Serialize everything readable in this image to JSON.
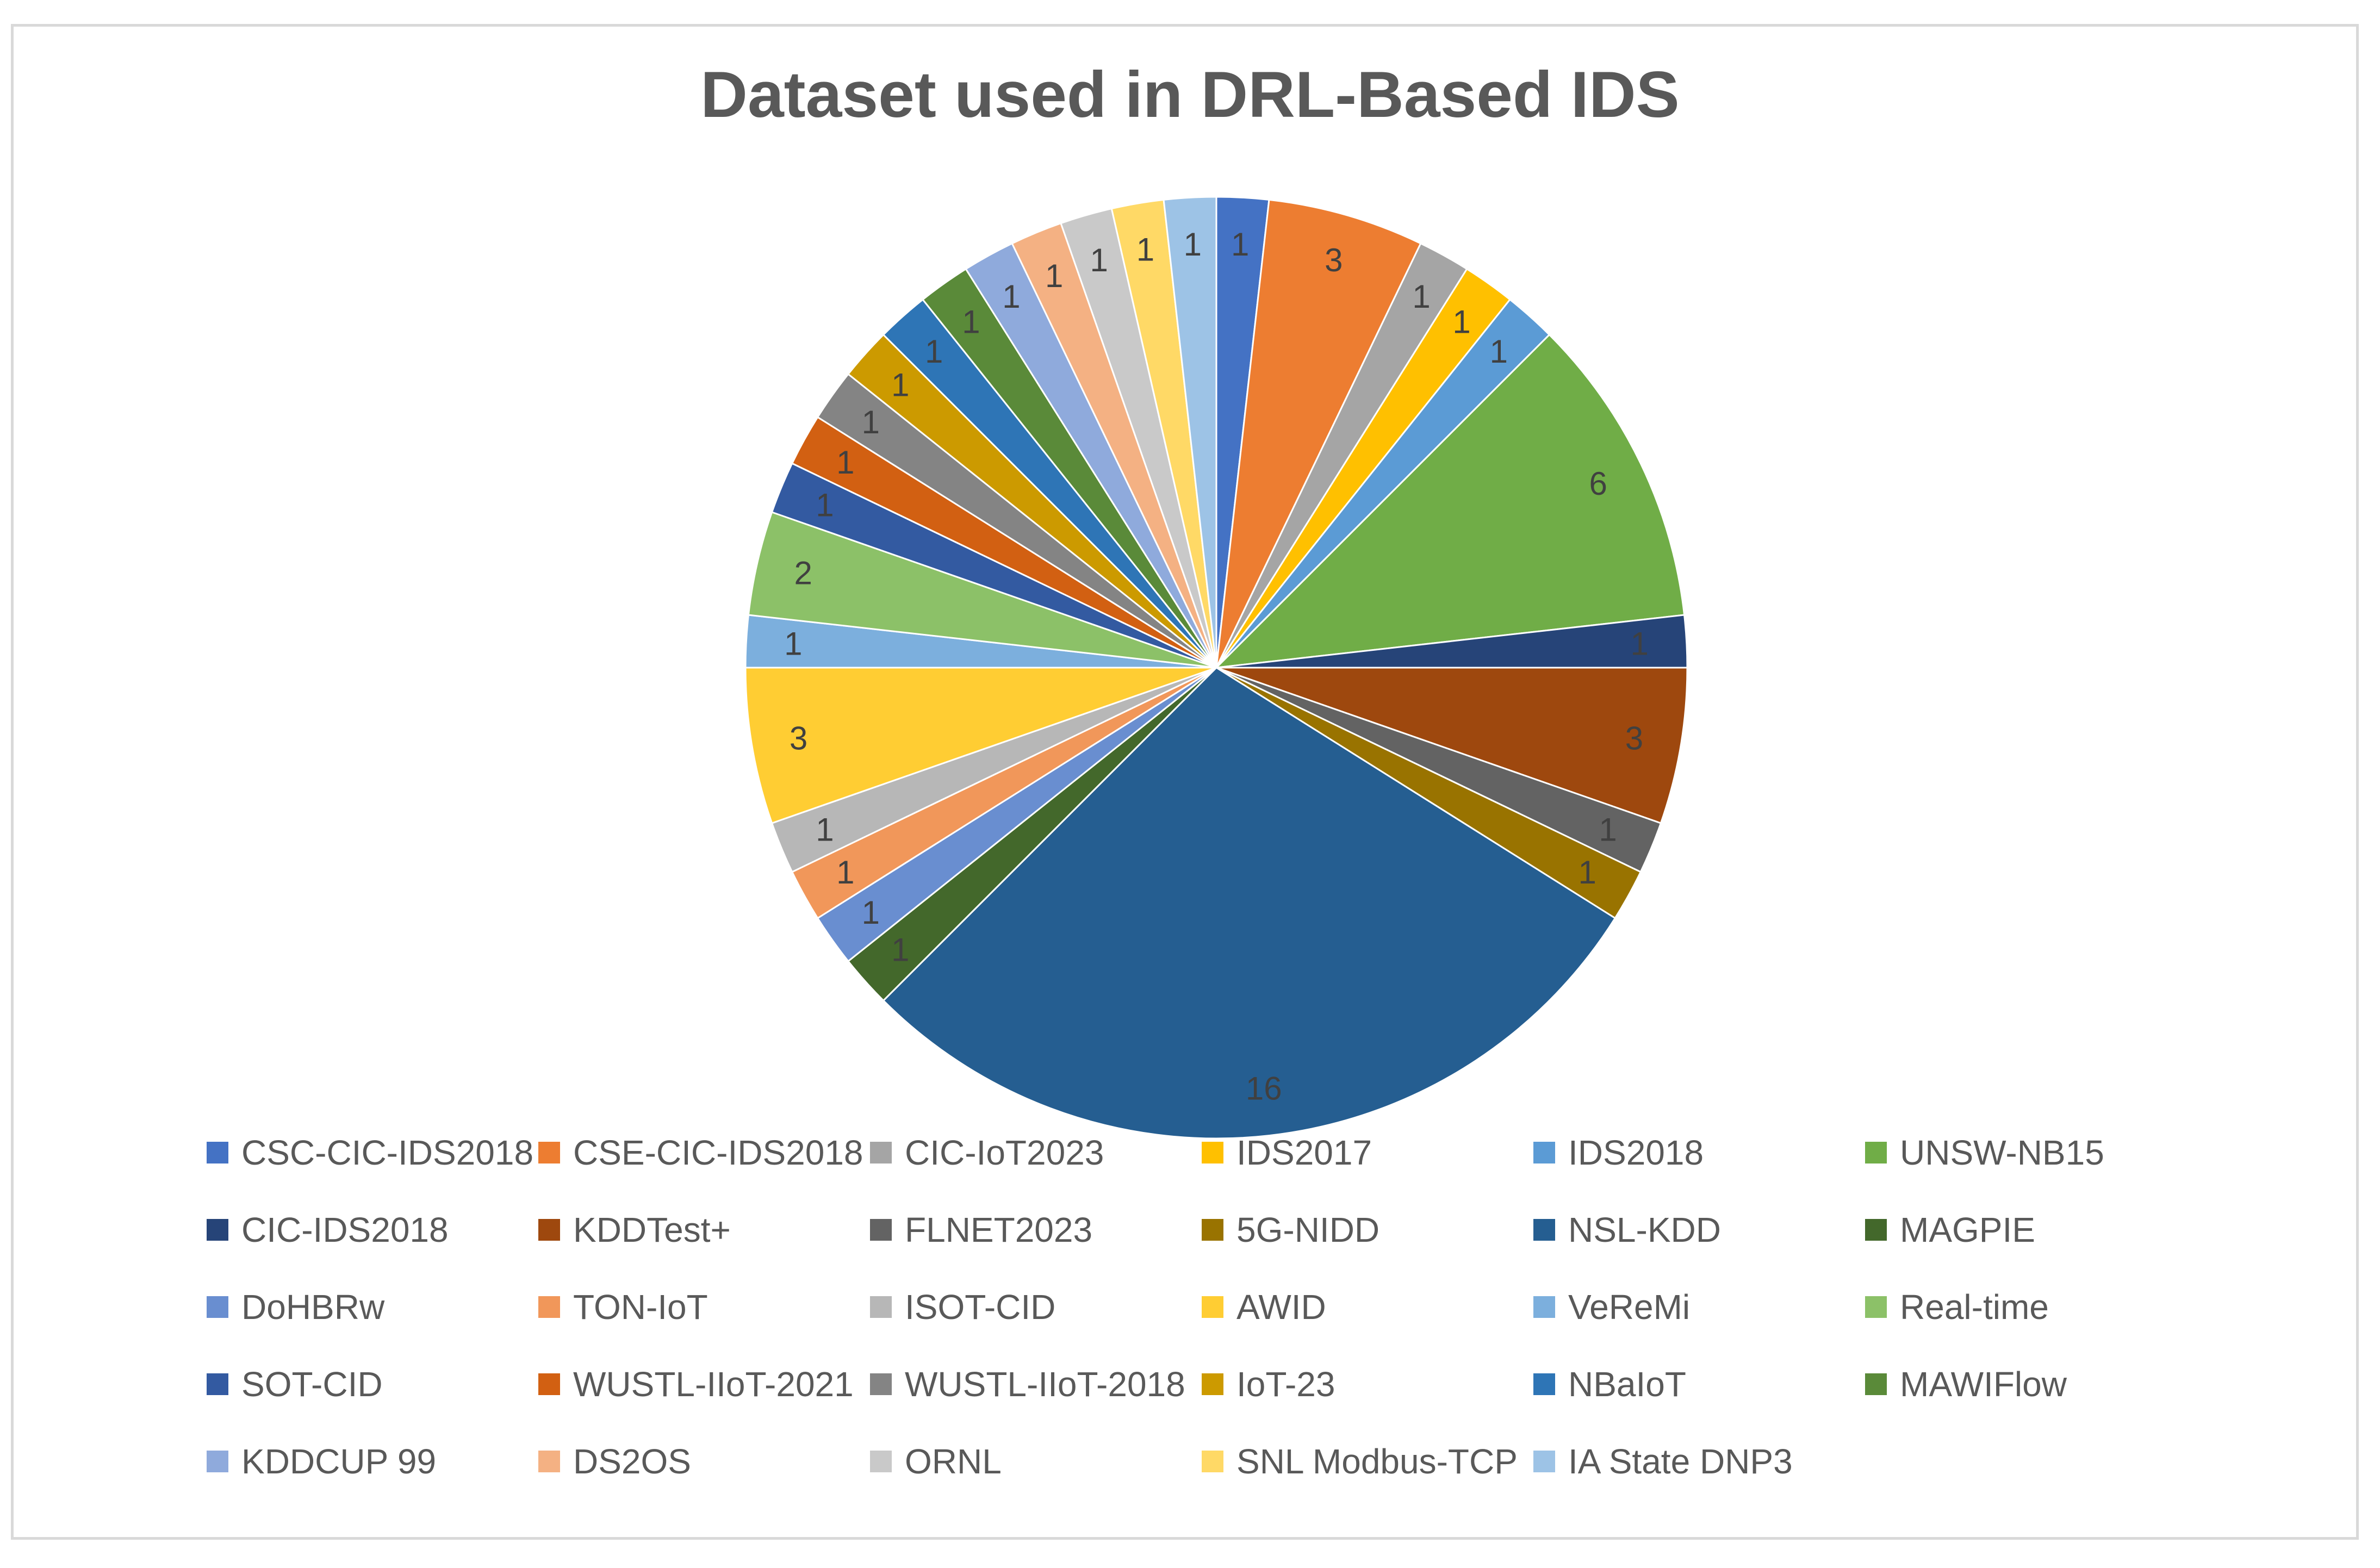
{
  "chart_data": {
    "type": "pie",
    "title": "Dataset used in DRL-Based IDS",
    "legend_placement": "bottom",
    "slices": [
      {
        "label": "CSC-CIC-IDS2018",
        "value": 1,
        "color": "#4472C4"
      },
      {
        "label": "CSE-CIC-IDS2018",
        "value": 3,
        "color": "#ED7D31"
      },
      {
        "label": "CIC-IoT2023",
        "value": 1,
        "color": "#A5A5A5"
      },
      {
        "label": "IDS2017",
        "value": 1,
        "color": "#FFC000"
      },
      {
        "label": "IDS2018",
        "value": 1,
        "color": "#5B9BD5"
      },
      {
        "label": "UNSW-NB15",
        "value": 6,
        "color": "#70AD47"
      },
      {
        "label": "CIC-IDS2018",
        "value": 1,
        "color": "#264478"
      },
      {
        "label": "KDDTest+",
        "value": 3,
        "color": "#9E480E"
      },
      {
        "label": "FLNET2023",
        "value": 1,
        "color": "#636363"
      },
      {
        "label": "5G-NIDD",
        "value": 1,
        "color": "#997300"
      },
      {
        "label": "NSL-KDD",
        "value": 16,
        "color": "#255E91"
      },
      {
        "label": "MAGPIE",
        "value": 1,
        "color": "#43682B"
      },
      {
        "label": "DoHBRw",
        "value": 1,
        "color": "#698ED0"
      },
      {
        "label": "TON-IoT",
        "value": 1,
        "color": "#F1975A"
      },
      {
        "label": "ISOT-CID",
        "value": 1,
        "color": "#B7B7B7"
      },
      {
        "label": "AWID",
        "value": 3,
        "color": "#FFCD33"
      },
      {
        "label": "VeReMi",
        "value": 1,
        "color": "#7CAFDD"
      },
      {
        "label": "Real-time",
        "value": 2,
        "color": "#8CC168"
      },
      {
        "label": "SOT-CID",
        "value": 1,
        "color": "#335AA1"
      },
      {
        "label": "WUSTL-IIoT-2021",
        "value": 1,
        "color": "#D26012"
      },
      {
        "label": "WUSTL-IIoT-2018",
        "value": 1,
        "color": "#848484"
      },
      {
        "label": "IoT-23",
        "value": 1,
        "color": "#CC9A00"
      },
      {
        "label": "NBaIoT",
        "value": 1,
        "color": "#2E75B6"
      },
      {
        "label": "MAWIFlow",
        "value": 1,
        "color": "#5A8A39"
      },
      {
        "label": "KDDCUP 99",
        "value": 1,
        "color": "#8FAADC"
      },
      {
        "label": "DS2OS",
        "value": 1,
        "color": "#F4B183"
      },
      {
        "label": "ORNL",
        "value": 1,
        "color": "#C9C9C9"
      },
      {
        "label": "SNL Modbus-TCP",
        "value": 1,
        "color": "#FFD966"
      },
      {
        "label": "IA State DNP3",
        "value": 1,
        "color": "#9DC3E6"
      }
    ]
  }
}
